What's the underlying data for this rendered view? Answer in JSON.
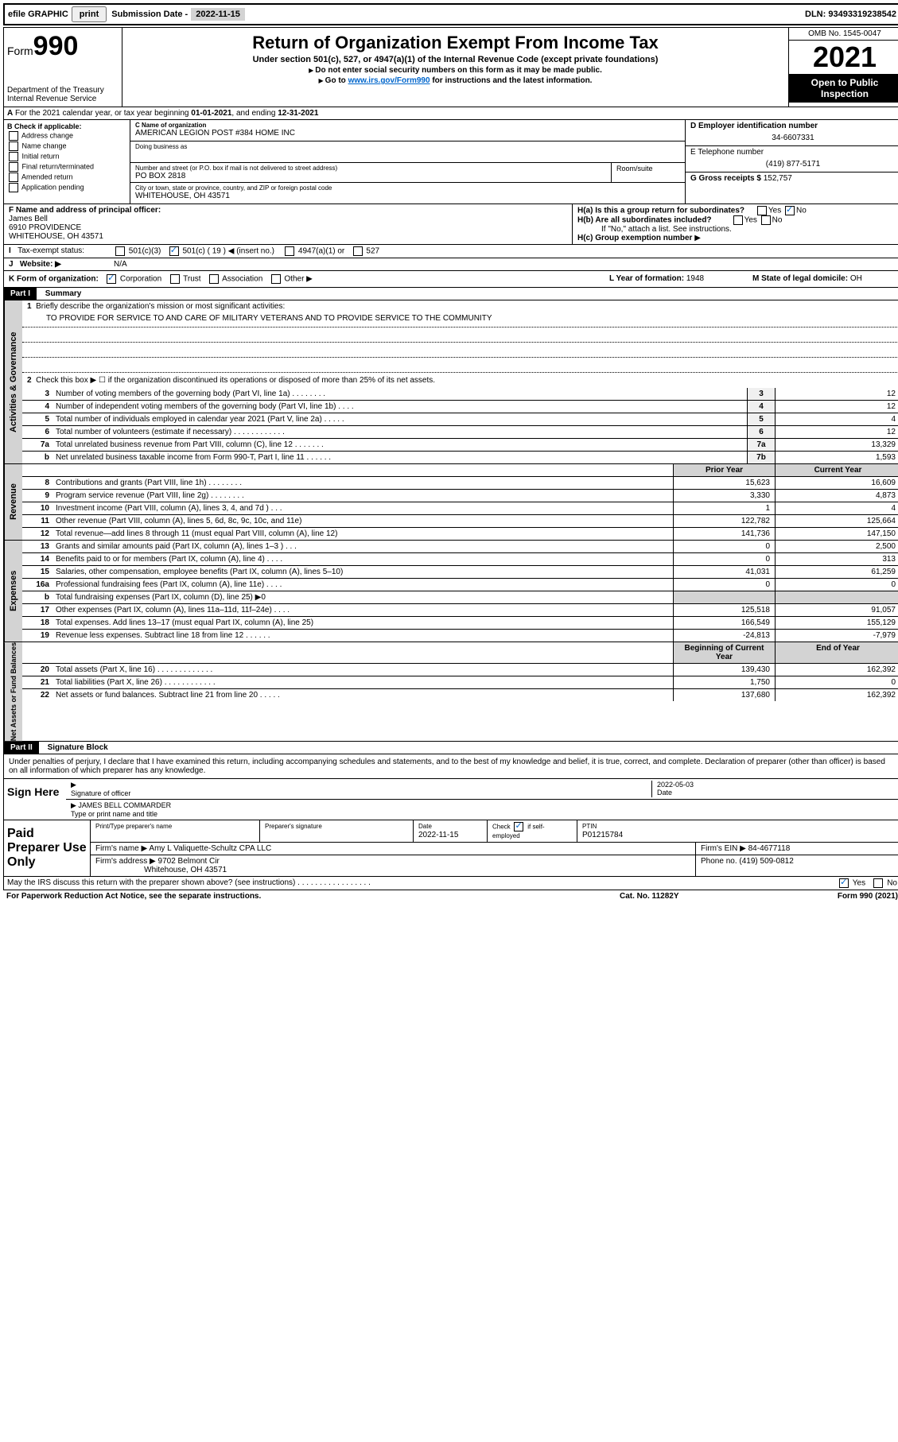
{
  "topbar": {
    "efile_label": "efile GRAPHIC",
    "print_btn": "print",
    "submission_label": "Submission Date",
    "submission_date": "2022-11-15",
    "dln_label": "DLN:",
    "dln": "93493319238542"
  },
  "header": {
    "form_word": "Form",
    "form_num": "990",
    "dept": "Department of the Treasury",
    "irs": "Internal Revenue Service",
    "title": "Return of Organization Exempt From Income Tax",
    "subtitle": "Under section 501(c), 527, or 4947(a)(1) of the Internal Revenue Code (except private foundations)",
    "note1": "Do not enter social security numbers on this form as it may be made public.",
    "note2_pre": "Go to ",
    "note2_link": "www.irs.gov/Form990",
    "note2_post": " for instructions and the latest information.",
    "omb": "OMB No. 1545-0047",
    "year": "2021",
    "open": "Open to Public Inspection"
  },
  "lineA": {
    "text_pre": "For the 2021 calendar year, or tax year beginning ",
    "begin": "01-01-2021",
    "mid": ", and ending ",
    "end": "12-31-2021"
  },
  "sectionB": {
    "header": "B Check if applicable:",
    "items": [
      "Address change",
      "Name change",
      "Initial return",
      "Final return/terminated",
      "Amended return",
      "Application pending"
    ]
  },
  "sectionC": {
    "name_label": "C Name of organization",
    "name": "AMERICAN LEGION POST #384 HOME INC",
    "dba_label": "Doing business as",
    "addr_label": "Number and street (or P.O. box if mail is not delivered to street address)",
    "addr": "PO BOX 2818",
    "room_label": "Room/suite",
    "city_label": "City or town, state or province, country, and ZIP or foreign postal code",
    "city": "WHITEHOUSE, OH  43571"
  },
  "sectionD": {
    "ein_label": "D Employer identification number",
    "ein": "34-6607331",
    "phone_label": "E Telephone number",
    "phone": "(419) 877-5171",
    "gross_label": "G Gross receipts $",
    "gross": "152,757"
  },
  "sectionF": {
    "label": "F Name and address of principal officer:",
    "name": "James Bell",
    "addr1": "6910 PROVIDENCE",
    "addr2": "WHITEHOUSE, OH  43571"
  },
  "sectionH": {
    "ha_label": "H(a)  Is this a group return for subordinates?",
    "hb_label": "H(b)  Are all subordinates included?",
    "hb_note": "If \"No,\" attach a list. See instructions.",
    "hc_label": "H(c)  Group exemption number",
    "yes": "Yes",
    "no": "No"
  },
  "rowI": {
    "label": "Tax-exempt status:",
    "opt1": "501(c)(3)",
    "opt2_pre": "501(c) (",
    "opt2_num": "19",
    "opt2_post": ") ◀ (insert no.)",
    "opt3": "4947(a)(1) or",
    "opt4": "527"
  },
  "rowJ": {
    "label": "Website: ▶",
    "value": "N/A"
  },
  "rowK": {
    "label": "K Form of organization:",
    "opts": [
      "Corporation",
      "Trust",
      "Association",
      "Other ▶"
    ]
  },
  "rowL": {
    "label": "L Year of formation:",
    "value": "1948"
  },
  "rowM": {
    "label": "M State of legal domicile:",
    "value": "OH"
  },
  "part1": {
    "header": "Part I",
    "title": "Summary",
    "section1_label": "Activities & Governance",
    "section2_label": "Revenue",
    "section3_label": "Expenses",
    "section4_label": "Net Assets or Fund Balances",
    "line1_label": "Briefly describe the organization's mission or most significant activities:",
    "mission": "TO PROVIDE FOR SERVICE TO AND CARE OF MILITARY VETERANS AND TO PROVIDE SERVICE TO THE COMMUNITY",
    "line2": "Check this box ▶ ☐  if the organization discontinued its operations or disposed of more than 25% of its net assets.",
    "prior_year": "Prior Year",
    "current_year": "Current Year",
    "begin_year": "Beginning of Current Year",
    "end_year": "End of Year",
    "rows_gov": [
      {
        "n": "3",
        "d": "Number of voting members of the governing body (Part VI, line 1a)   .    .    .    .    .    .    .    .",
        "b": "3",
        "v": "12"
      },
      {
        "n": "4",
        "d": "Number of independent voting members of the governing body (Part VI, line 1b)   .    .    .    .",
        "b": "4",
        "v": "12"
      },
      {
        "n": "5",
        "d": "Total number of individuals employed in calendar year 2021 (Part V, line 2a)   .    .    .    .    .",
        "b": "5",
        "v": "4"
      },
      {
        "n": "6",
        "d": "Total number of volunteers (estimate if necessary)   .    .    .    .    .    .    .    .    .    .    .    .",
        "b": "6",
        "v": "12"
      },
      {
        "n": "7a",
        "d": "Total unrelated business revenue from Part VIII, column (C), line 12   .    .    .    .    .    .    .",
        "b": "7a",
        "v": "13,329"
      },
      {
        "n": "b",
        "d": "Net unrelated business taxable income from Form 990-T, Part I, line 11   .    .    .    .    .    .",
        "b": "7b",
        "v": "1,593"
      }
    ],
    "rows_rev": [
      {
        "n": "8",
        "d": "Contributions and grants (Part VIII, line 1h)   .    .    .    .    .    .    .    .",
        "p": "15,623",
        "c": "16,609"
      },
      {
        "n": "9",
        "d": "Program service revenue (Part VIII, line 2g)   .    .    .    .    .    .    .    .",
        "p": "3,330",
        "c": "4,873"
      },
      {
        "n": "10",
        "d": "Investment income (Part VIII, column (A), lines 3, 4, and 7d )   .    .    .",
        "p": "1",
        "c": "4"
      },
      {
        "n": "11",
        "d": "Other revenue (Part VIII, column (A), lines 5, 6d, 8c, 9c, 10c, and 11e)",
        "p": "122,782",
        "c": "125,664"
      },
      {
        "n": "12",
        "d": "Total revenue—add lines 8 through 11 (must equal Part VIII, column (A), line 12)",
        "p": "141,736",
        "c": "147,150"
      }
    ],
    "rows_exp": [
      {
        "n": "13",
        "d": "Grants and similar amounts paid (Part IX, column (A), lines 1–3 )   .    .    .",
        "p": "0",
        "c": "2,500"
      },
      {
        "n": "14",
        "d": "Benefits paid to or for members (Part IX, column (A), line 4)   .    .    .    .",
        "p": "0",
        "c": "313"
      },
      {
        "n": "15",
        "d": "Salaries, other compensation, employee benefits (Part IX, column (A), lines 5–10)",
        "p": "41,031",
        "c": "61,259"
      },
      {
        "n": "16a",
        "d": "Professional fundraising fees (Part IX, column (A), line 11e)   .    .    .    .",
        "p": "0",
        "c": "0"
      },
      {
        "n": "b",
        "d": "Total fundraising expenses (Part IX, column (D), line 25) ▶0",
        "p": "",
        "c": "",
        "shaded": true
      },
      {
        "n": "17",
        "d": "Other expenses (Part IX, column (A), lines 11a–11d, 11f–24e)   .    .    .    .",
        "p": "125,518",
        "c": "91,057"
      },
      {
        "n": "18",
        "d": "Total expenses. Add lines 13–17 (must equal Part IX, column (A), line 25)",
        "p": "166,549",
        "c": "155,129"
      },
      {
        "n": "19",
        "d": "Revenue less expenses. Subtract line 18 from line 12   .    .    .    .    .    .",
        "p": "-24,813",
        "c": "-7,979"
      }
    ],
    "rows_net": [
      {
        "n": "20",
        "d": "Total assets (Part X, line 16)   .    .    .    .    .    .    .    .    .    .    .    .    .",
        "p": "139,430",
        "c": "162,392"
      },
      {
        "n": "21",
        "d": "Total liabilities (Part X, line 26)   .    .    .    .    .    .    .    .    .    .    .    .",
        "p": "1,750",
        "c": "0"
      },
      {
        "n": "22",
        "d": "Net assets or fund balances. Subtract line 21 from line 20   .    .    .    .    .",
        "p": "137,680",
        "c": "162,392"
      }
    ]
  },
  "part2": {
    "header": "Part II",
    "title": "Signature Block",
    "declaration": "Under penalties of perjury, I declare that I have examined this return, including accompanying schedules and statements, and to the best of my knowledge and belief, it is true, correct, and complete. Declaration of preparer (other than officer) is based on all information of which preparer has any knowledge.",
    "sign_here": "Sign Here",
    "sig_officer": "Signature of officer",
    "sig_date": "Date",
    "sig_date_val": "2022-05-03",
    "officer_name": "JAMES BELL COMMARDER",
    "type_name": "Type or print name and title",
    "paid_preparer": "Paid Preparer Use Only",
    "print_name": "Print/Type preparer's name",
    "prep_sig": "Preparer's signature",
    "prep_date_label": "Date",
    "prep_date": "2022-11-15",
    "check_if": "Check",
    "self_emp": "if self-employed",
    "ptin_label": "PTIN",
    "ptin": "P01215784",
    "firm_name_label": "Firm's name     ▶",
    "firm_name": "Amy L Valiquette-Schultz CPA LLC",
    "firm_ein_label": "Firm's EIN ▶",
    "firm_ein": "84-4677118",
    "firm_addr_label": "Firm's address ▶",
    "firm_addr1": "9702 Belmont Cir",
    "firm_addr2": "Whitehouse, OH 43571",
    "firm_phone_label": "Phone no.",
    "firm_phone": "(419) 509-0812",
    "discuss": "May the IRS discuss this return with the preparer shown above? (see instructions)   .    .    .    .    .    .    .    .    .    .    .    .    .    .    .    .    .",
    "yes": "Yes",
    "no": "No"
  },
  "footer": {
    "paperwork": "For Paperwork Reduction Act Notice, see the separate instructions.",
    "cat": "Cat. No. 11282Y",
    "form": "Form 990 (2021)"
  }
}
